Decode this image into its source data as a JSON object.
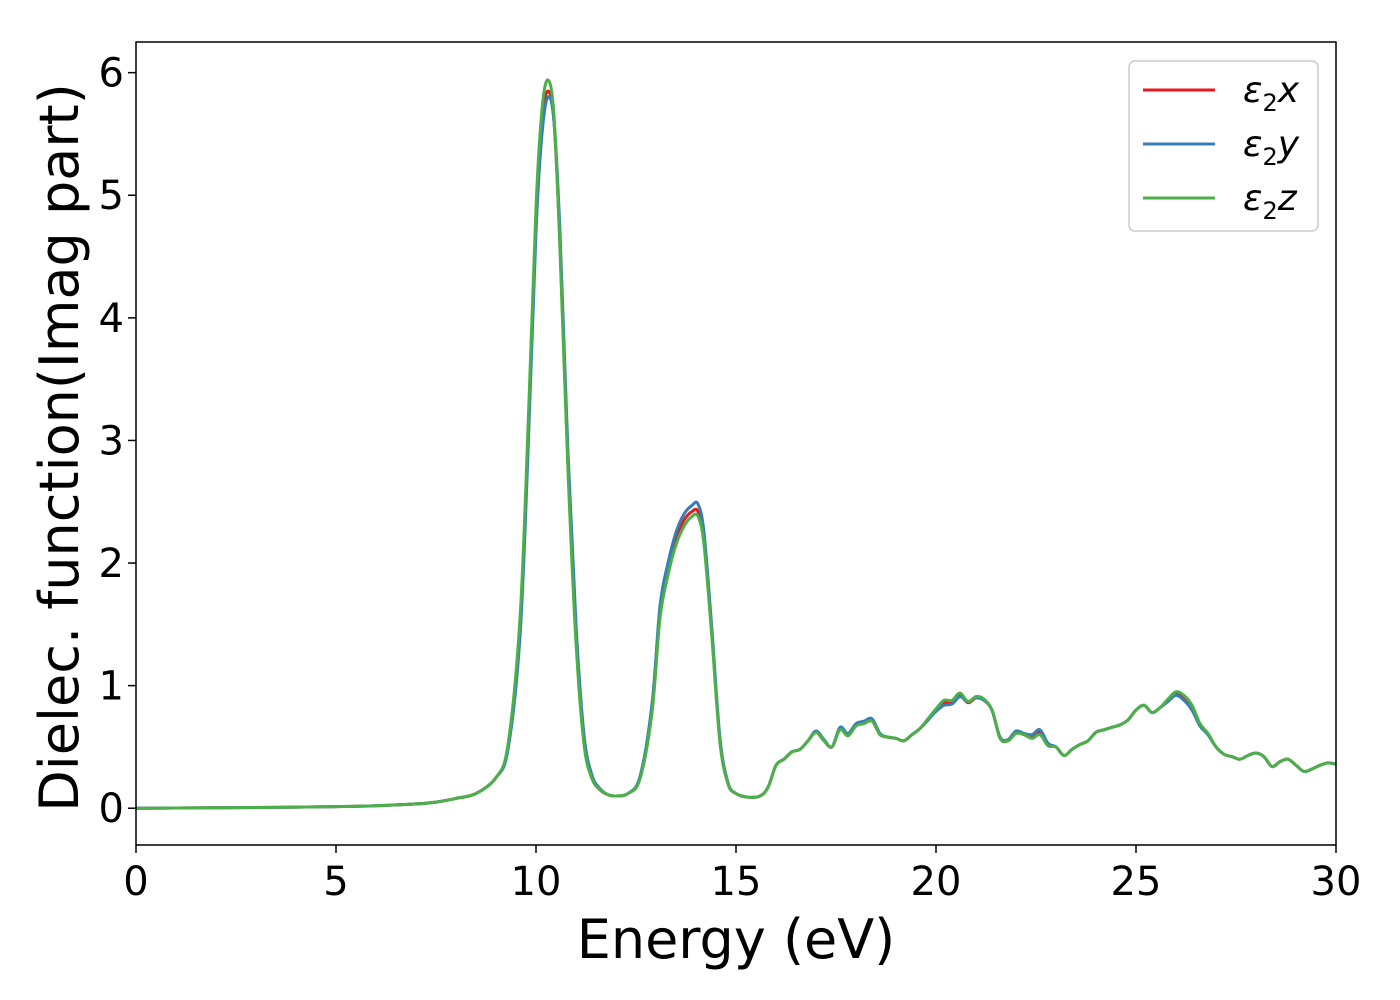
{
  "chart_data": {
    "type": "line",
    "title": "",
    "xlabel": "Energy (eV)",
    "ylabel": "Dielec. function(Imag part)",
    "xlim": [
      0,
      30
    ],
    "ylim": [
      -0.3,
      6.25
    ],
    "xticks": [
      0,
      5,
      10,
      15,
      20,
      25,
      30
    ],
    "yticks": [
      0,
      1,
      2,
      3,
      4,
      5,
      6
    ],
    "grid": false,
    "legend_position": "top-right",
    "x": [
      0,
      1,
      2,
      3,
      4,
      5,
      6,
      7,
      7.5,
      8,
      8.5,
      9,
      9.3,
      9.6,
      9.8,
      10,
      10.15,
      10.3,
      10.45,
      10.6,
      10.8,
      11,
      11.2,
      11.4,
      11.6,
      11.8,
      12,
      12.3,
      12.6,
      12.9,
      13.1,
      13.3,
      13.5,
      13.7,
      13.9,
      14.05,
      14.2,
      14.4,
      14.6,
      14.8,
      15,
      15.3,
      15.6,
      15.8,
      16,
      16.2,
      16.4,
      16.6,
      16.8,
      17,
      17.2,
      17.4,
      17.6,
      17.8,
      18,
      18.2,
      18.4,
      18.6,
      18.8,
      19,
      19.2,
      19.4,
      19.6,
      19.8,
      20,
      20.2,
      20.4,
      20.6,
      20.8,
      21,
      21.2,
      21.4,
      21.6,
      21.8,
      22,
      22.2,
      22.4,
      22.6,
      22.8,
      23,
      23.2,
      23.4,
      23.6,
      23.8,
      24,
      24.2,
      24.4,
      24.6,
      24.8,
      25,
      25.2,
      25.4,
      25.6,
      25.8,
      26,
      26.2,
      26.4,
      26.6,
      26.8,
      27,
      27.2,
      27.4,
      27.6,
      27.8,
      28,
      28.2,
      28.4,
      28.6,
      28.8,
      29,
      29.2,
      29.4,
      29.6,
      29.8,
      30
    ],
    "series": [
      {
        "name": "ε2x",
        "color": "#e41a1c",
        "values": [
          0,
          0.002,
          0.004,
          0.006,
          0.009,
          0.013,
          0.02,
          0.035,
          0.05,
          0.08,
          0.12,
          0.25,
          0.5,
          1.5,
          3.0,
          4.8,
          5.6,
          5.85,
          5.6,
          4.6,
          2.8,
          1.4,
          0.55,
          0.25,
          0.15,
          0.11,
          0.1,
          0.12,
          0.25,
          0.8,
          1.6,
          1.95,
          2.2,
          2.35,
          2.42,
          2.42,
          2.2,
          1.4,
          0.55,
          0.2,
          0.12,
          0.09,
          0.1,
          0.17,
          0.35,
          0.4,
          0.46,
          0.48,
          0.55,
          0.62,
          0.55,
          0.5,
          0.65,
          0.6,
          0.68,
          0.7,
          0.72,
          0.6,
          0.58,
          0.57,
          0.55,
          0.6,
          0.65,
          0.72,
          0.8,
          0.86,
          0.87,
          0.92,
          0.86,
          0.9,
          0.88,
          0.8,
          0.58,
          0.55,
          0.62,
          0.6,
          0.58,
          0.62,
          0.52,
          0.5,
          0.43,
          0.48,
          0.52,
          0.55,
          0.62,
          0.64,
          0.66,
          0.68,
          0.72,
          0.8,
          0.84,
          0.78,
          0.82,
          0.88,
          0.93,
          0.9,
          0.82,
          0.68,
          0.6,
          0.5,
          0.44,
          0.42,
          0.4,
          0.43,
          0.45,
          0.42,
          0.34,
          0.38,
          0.4,
          0.35,
          0.3,
          0.32,
          0.35,
          0.37,
          0.36
        ]
      },
      {
        "name": "ε2y",
        "color": "#377eb8",
        "values": [
          0,
          0.002,
          0.004,
          0.006,
          0.009,
          0.013,
          0.02,
          0.035,
          0.05,
          0.08,
          0.12,
          0.25,
          0.48,
          1.4,
          2.9,
          4.7,
          5.5,
          5.8,
          5.6,
          4.7,
          2.9,
          1.5,
          0.6,
          0.27,
          0.16,
          0.11,
          0.1,
          0.12,
          0.26,
          0.85,
          1.65,
          2.0,
          2.25,
          2.4,
          2.47,
          2.48,
          2.25,
          1.45,
          0.57,
          0.21,
          0.12,
          0.09,
          0.1,
          0.17,
          0.35,
          0.4,
          0.46,
          0.48,
          0.55,
          0.63,
          0.56,
          0.5,
          0.66,
          0.61,
          0.69,
          0.71,
          0.73,
          0.61,
          0.58,
          0.57,
          0.55,
          0.6,
          0.65,
          0.72,
          0.79,
          0.84,
          0.85,
          0.91,
          0.87,
          0.9,
          0.88,
          0.8,
          0.58,
          0.56,
          0.63,
          0.61,
          0.6,
          0.64,
          0.53,
          0.5,
          0.43,
          0.48,
          0.52,
          0.55,
          0.62,
          0.64,
          0.66,
          0.68,
          0.72,
          0.8,
          0.84,
          0.78,
          0.82,
          0.87,
          0.92,
          0.88,
          0.8,
          0.67,
          0.6,
          0.5,
          0.44,
          0.42,
          0.4,
          0.43,
          0.45,
          0.42,
          0.34,
          0.38,
          0.4,
          0.35,
          0.3,
          0.32,
          0.35,
          0.37,
          0.36
        ]
      },
      {
        "name": "ε2z",
        "color": "#4daf4a",
        "values": [
          0,
          0.002,
          0.004,
          0.006,
          0.009,
          0.013,
          0.02,
          0.035,
          0.05,
          0.08,
          0.12,
          0.25,
          0.52,
          1.55,
          3.1,
          4.9,
          5.7,
          5.94,
          5.65,
          4.55,
          2.75,
          1.35,
          0.52,
          0.24,
          0.15,
          0.11,
          0.1,
          0.12,
          0.24,
          0.78,
          1.55,
          1.9,
          2.15,
          2.3,
          2.38,
          2.38,
          2.15,
          1.38,
          0.53,
          0.2,
          0.12,
          0.09,
          0.1,
          0.17,
          0.35,
          0.4,
          0.46,
          0.48,
          0.55,
          0.62,
          0.55,
          0.5,
          0.64,
          0.59,
          0.67,
          0.69,
          0.71,
          0.6,
          0.58,
          0.57,
          0.55,
          0.6,
          0.65,
          0.73,
          0.81,
          0.88,
          0.88,
          0.94,
          0.87,
          0.91,
          0.89,
          0.8,
          0.57,
          0.55,
          0.61,
          0.6,
          0.57,
          0.6,
          0.51,
          0.5,
          0.43,
          0.48,
          0.52,
          0.55,
          0.62,
          0.64,
          0.66,
          0.68,
          0.72,
          0.8,
          0.84,
          0.78,
          0.82,
          0.89,
          0.95,
          0.92,
          0.84,
          0.69,
          0.61,
          0.5,
          0.44,
          0.42,
          0.4,
          0.43,
          0.45,
          0.42,
          0.34,
          0.38,
          0.4,
          0.35,
          0.3,
          0.32,
          0.35,
          0.37,
          0.36
        ]
      }
    ],
    "legend": [
      {
        "symbol": "ε",
        "sub": "2",
        "axis": "x"
      },
      {
        "symbol": "ε",
        "sub": "2",
        "axis": "y"
      },
      {
        "symbol": "ε",
        "sub": "2",
        "axis": "z"
      }
    ]
  }
}
